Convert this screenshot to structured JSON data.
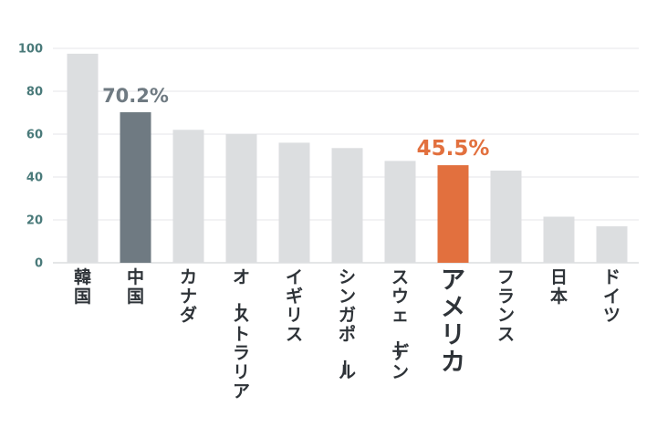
{
  "chart_data": {
    "type": "bar",
    "categories": [
      "韓国",
      "中国",
      "カナダ",
      "オーストラリア",
      "イギリス",
      "シンガポール",
      "スウェーデン",
      "アメリカ",
      "フランス",
      "日本",
      "ドイツ"
    ],
    "values": [
      97.5,
      70.2,
      62,
      60,
      56,
      53.5,
      47.5,
      45.5,
      43,
      21.5,
      17
    ],
    "highlights": [
      {
        "index": 1,
        "label": "70.2%",
        "color": "#6f7a82"
      },
      {
        "index": 7,
        "label": "45.5%",
        "color": "#e2703e"
      }
    ],
    "bar_color": "#dcdee0",
    "ylim": [
      0,
      100
    ],
    "yticks": [
      "0",
      "20",
      "40",
      "60",
      "80",
      "100"
    ],
    "grid": true,
    "title": "",
    "xlabel": "",
    "ylabel": ""
  }
}
